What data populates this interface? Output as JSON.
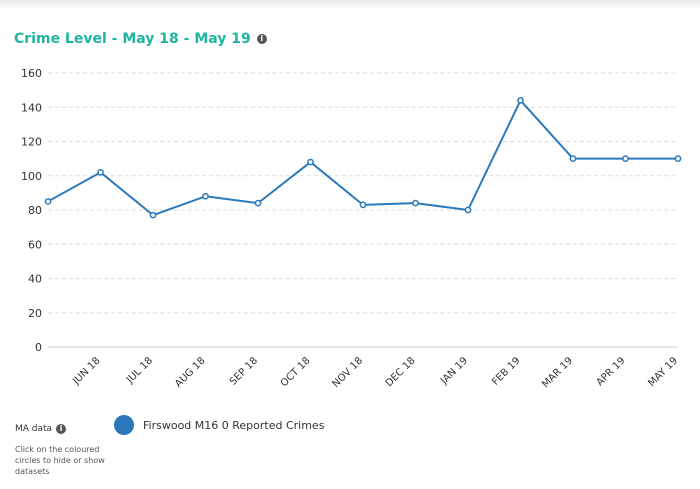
{
  "header": {
    "title": "Crime Level - May 18 - May 19",
    "info_icon": "info-icon"
  },
  "chart_data": {
    "type": "line",
    "title": "Crime Level - May 18 - May 19",
    "xlabel": "",
    "ylabel": "",
    "categories": [
      "",
      "JUN 18",
      "JUL 18",
      "AUG 18",
      "SEP 18",
      "OCT 18",
      "NOV 18",
      "DEC 18",
      "JAN 19",
      "FEB 19",
      "MAR 19",
      "APR 19",
      "MAY 19"
    ],
    "series": [
      {
        "name": "Firswood M16 0 Reported Crimes",
        "color": "#2a79bb",
        "values": [
          85,
          102,
          77,
          88,
          84,
          108,
          83,
          84,
          80,
          144,
          110,
          110,
          110
        ]
      }
    ],
    "ylim": [
      0,
      160
    ],
    "yticks": [
      0,
      20,
      40,
      60,
      80,
      100,
      120,
      140,
      160
    ],
    "grid": true,
    "gridline_color": "#dddddd",
    "legend_position": "bottom"
  },
  "legend": {
    "ma_label": "MA data",
    "ma_help": "Click on the coloured circles to hide or show datasets",
    "series_label": "Firswood M16 0 Reported Crimes"
  }
}
